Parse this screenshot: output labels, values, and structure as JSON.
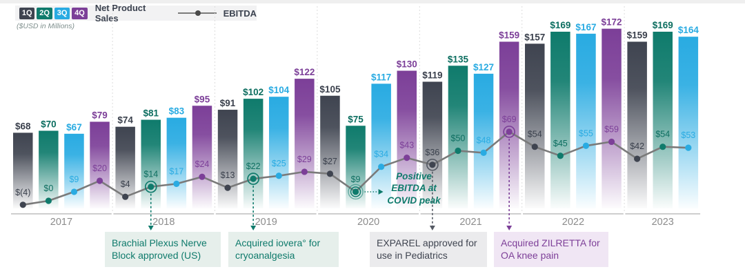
{
  "legend": {
    "quarters": [
      {
        "label": "1Q",
        "color": "#3f4450"
      },
      {
        "label": "2Q",
        "color": "#0f7b6c"
      },
      {
        "label": "3Q",
        "color": "#29abe2"
      },
      {
        "label": "4Q",
        "color": "#7c3f98"
      }
    ],
    "bars_label": "Net Product Sales",
    "line_label": "EBITDA",
    "units_note": "($USD in Millions)"
  },
  "chart_data": {
    "type": "bar",
    "subtype": "grouped bars with overlaid line",
    "title": "Net Product Sales and EBITDA by quarter ($USD in Millions)",
    "units": "$USD in Millions",
    "grid": false,
    "legend_position": "top-left",
    "line_color": "#7a7a7a",
    "quarter_colors": {
      "1Q": "#3f4450",
      "2Q": "#0f7b6c",
      "3Q": "#29abe2",
      "4Q": "#7c3f98"
    },
    "label_colors": {
      "1Q": "#3a404c",
      "2Q": "#0d6e60",
      "3Q": "#29abe2",
      "4Q": "#7c3f98"
    },
    "years": [
      {
        "year": "2017",
        "net_product_sales": [
          68,
          70,
          67,
          79
        ],
        "ebitda": [
          -4,
          0,
          9,
          20
        ]
      },
      {
        "year": "2018",
        "net_product_sales": [
          74,
          81,
          83,
          95
        ],
        "ebitda": [
          4,
          14,
          17,
          24
        ]
      },
      {
        "year": "2019",
        "net_product_sales": [
          91,
          102,
          104,
          122
        ],
        "ebitda": [
          13,
          22,
          25,
          29
        ]
      },
      {
        "year": "2020",
        "net_product_sales": [
          105,
          75,
          117,
          130
        ],
        "ebitda": [
          27,
          9,
          34,
          43
        ]
      },
      {
        "year": "2021",
        "net_product_sales": [
          119,
          135,
          127,
          159
        ],
        "ebitda": [
          36,
          50,
          48,
          69
        ]
      },
      {
        "year": "2022",
        "net_product_sales": [
          157,
          169,
          167,
          172
        ],
        "ebitda": [
          54,
          45,
          55,
          59
        ]
      },
      {
        "year": "2023",
        "net_product_sales": [
          159,
          169,
          164
        ],
        "ebitda": [
          42,
          54,
          53
        ]
      }
    ]
  },
  "annotations": {
    "covid_note": {
      "text": "Positive EBITDA at COVID peak",
      "color": "#0e7a6b",
      "attached_to": {
        "year": "2020",
        "quarter": "2Q"
      }
    },
    "callouts": [
      {
        "text": "Brachial Plexus Nerve Block approved (US)",
        "color": "#0e7a6b",
        "bg": "#e6efeb",
        "arrow_color": "#0f7b6c",
        "attached_to": {
          "year": "2018",
          "quarter": "2Q"
        }
      },
      {
        "text": "Acquired iovera° for cryoanalgesia",
        "color": "#0e7a6b",
        "bg": "#e6efeb",
        "arrow_color": "#0f7b6c",
        "attached_to": {
          "year": "2019",
          "quarter": "2Q"
        }
      },
      {
        "text": "EXPAREL approved for use in Pediatrics",
        "color": "#3f4450",
        "bg": "#ebebed",
        "arrow_color": "#555a64",
        "attached_to": {
          "year": "2021",
          "quarter": "1Q"
        }
      },
      {
        "text": "Acquired ZILRETTA for OA knee pain",
        "color": "#7d3f98",
        "bg": "#f0e6f4",
        "arrow_color": "#7c3f98",
        "attached_to": {
          "year": "2021",
          "quarter": "4Q"
        }
      }
    ]
  }
}
